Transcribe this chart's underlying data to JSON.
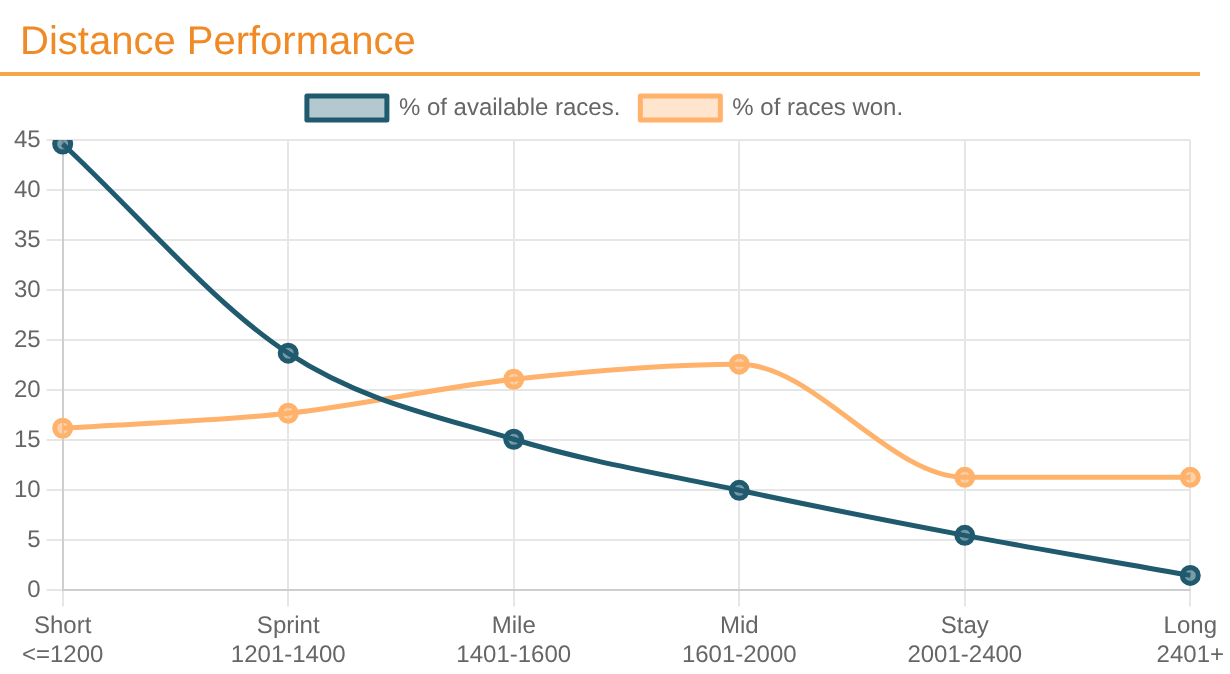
{
  "chart_data": {
    "type": "line",
    "title": "Distance Performance",
    "categories": [
      "Short\n<=1200",
      "Sprint\n1201-1400",
      "Mile\n1401-1600",
      "Mid\n1601-2000",
      "Stay\n2001-2400",
      "Long\n2401+"
    ],
    "series": [
      {
        "name": "% of available races.",
        "color": "#1f5a6e",
        "values": [
          44.6,
          23.7,
          15.1,
          10.0,
          5.5,
          1.5
        ]
      },
      {
        "name": "% of races won.",
        "color": "#ffb26b",
        "values": [
          16.2,
          17.7,
          21.1,
          22.6,
          11.3,
          11.3
        ]
      }
    ],
    "ylim": [
      0,
      45
    ],
    "yticks": [
      0,
      5,
      10,
      15,
      20,
      25,
      30,
      35,
      40,
      45
    ],
    "grid": true,
    "legend": "top",
    "marker": "circle"
  }
}
